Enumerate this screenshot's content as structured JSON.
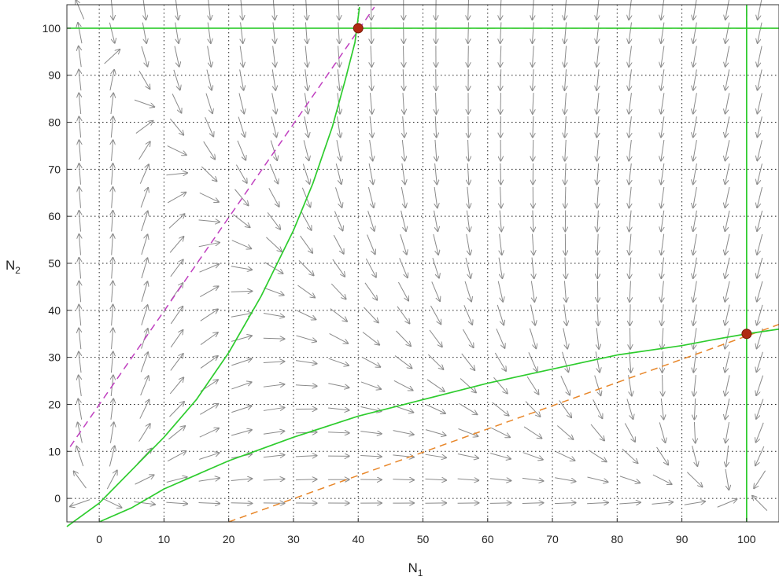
{
  "chart_data": {
    "type": "phase-portrait",
    "xlabel": "N",
    "xlabel_sub": "1",
    "ylabel": "N",
    "ylabel_sub": "2",
    "xlim": [
      -5,
      105
    ],
    "ylim": [
      -5,
      105
    ],
    "x_ticks": [
      0,
      10,
      20,
      30,
      40,
      50,
      60,
      70,
      80,
      90,
      100
    ],
    "y_ticks": [
      0,
      10,
      20,
      30,
      40,
      50,
      60,
      70,
      80,
      90,
      100
    ],
    "grid": true,
    "colors": {
      "arrows": "#8a8a8a",
      "trajectories": "#2ecc2e",
      "nullcline_n1": "#c040c0",
      "nullcline_n2": "#e8872a",
      "equilibria": "#b02a12"
    },
    "equilibrium_points": [
      {
        "x": 40,
        "y": 100
      },
      {
        "x": 100,
        "y": 35
      }
    ],
    "nullcline_n1_segment": {
      "x": [
        -4.5,
        42.5
      ],
      "y": [
        11,
        104.5
      ]
    },
    "nullcline_n2_segment": {
      "x": [
        20,
        105
      ],
      "y": [
        -5,
        37
      ]
    },
    "nullcline_n2_top": {
      "x": [
        40,
        105
      ],
      "y": [
        100,
        100
      ]
    },
    "nullcline_n1_right": {
      "x": [
        100,
        100
      ],
      "y": [
        100,
        105
      ]
    },
    "trajectories": [
      {
        "x": [
          -5,
          0,
          5,
          10,
          15,
          20,
          25,
          30,
          33,
          36,
          38,
          39.5,
          40.2
        ],
        "y": [
          -6,
          -1,
          6,
          13,
          21,
          31,
          43,
          57,
          67,
          79,
          89,
          97,
          104.5
        ]
      },
      {
        "x": [
          0,
          5,
          10,
          15,
          20,
          25,
          30,
          40,
          50,
          60,
          70,
          80,
          90,
          95,
          100,
          105
        ],
        "y": [
          -5,
          -2,
          2,
          5,
          8,
          10.5,
          13,
          17.5,
          21,
          24.5,
          27.5,
          30.5,
          32.5,
          33.8,
          35,
          36
        ]
      },
      {
        "x": [
          -5,
          40,
          105
        ],
        "y": [
          100,
          100,
          100
        ]
      },
      {
        "x": [
          100,
          100
        ],
        "y": [
          -5,
          105
        ]
      }
    ],
    "vector_field": {
      "x_start": -3,
      "x_step": 5,
      "x_count": 22,
      "y_start": -1,
      "y_step": 5,
      "y_count": 22,
      "r1": 1.0,
      "K1": 100,
      "a12": 0.5,
      "r2": 1.0,
      "K2": 100,
      "a21": 2.5
    }
  }
}
